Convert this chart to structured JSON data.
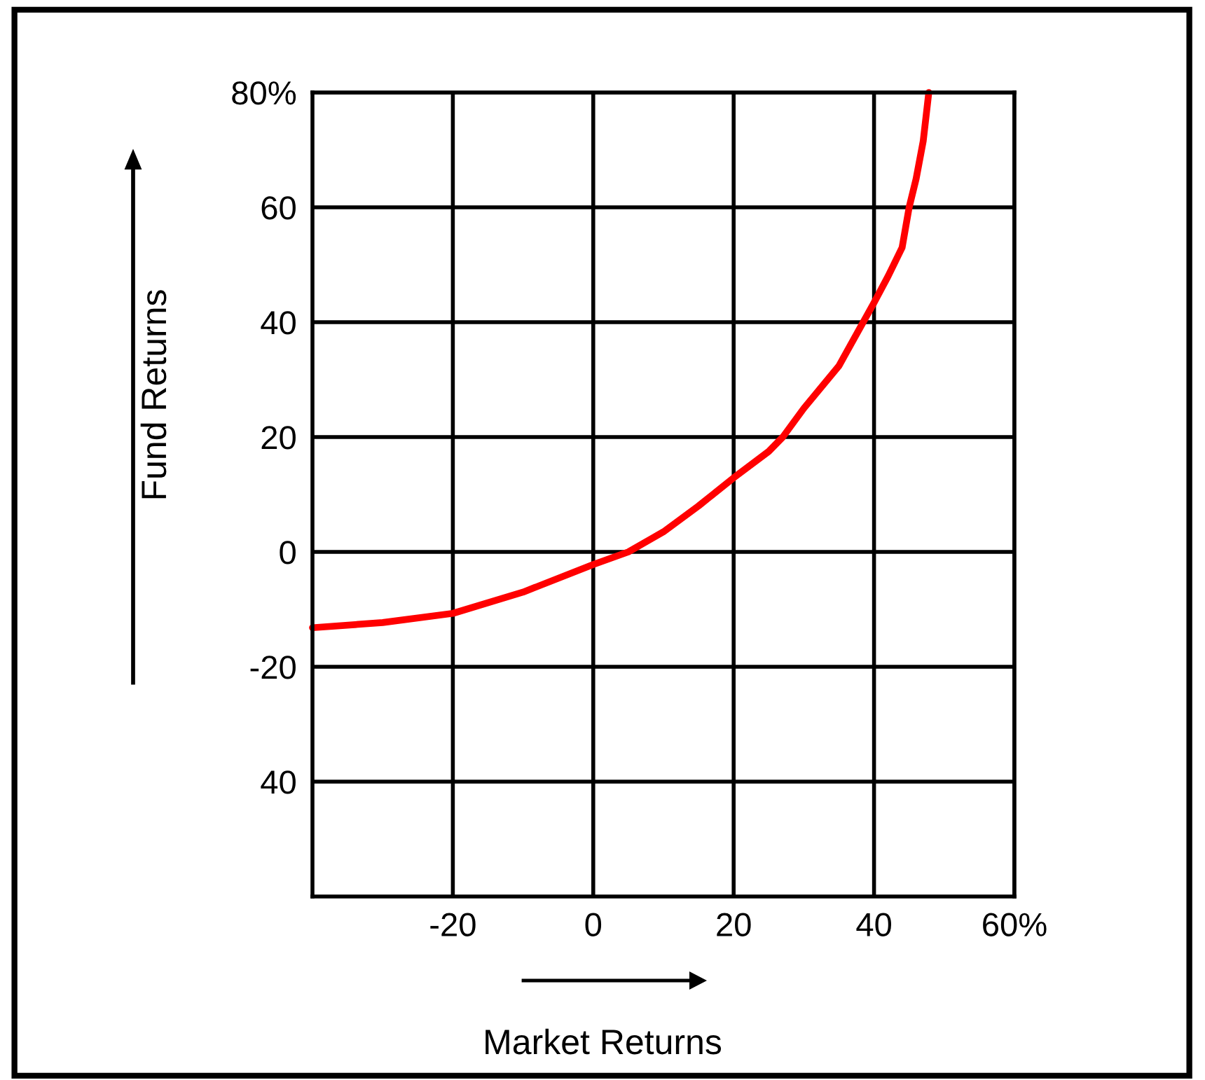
{
  "chart_data": {
    "type": "line",
    "xlabel": "Market Returns",
    "ylabel": "Fund Returns",
    "xlim": [
      -40,
      60
    ],
    "ylim": [
      -60,
      80
    ],
    "xticks": [
      -20,
      0,
      20,
      {
        "value": 40,
        "label": "40"
      },
      {
        "value": 60,
        "label": "60%"
      }
    ],
    "yticks": [
      {
        "value": 80,
        "label": "80%"
      },
      60,
      40,
      20,
      0,
      -20,
      {
        "value": -40,
        "label": "40"
      }
    ],
    "grid": true,
    "marker": "none",
    "line_style": "solid",
    "series": [
      {
        "color": "#ff0000",
        "x": [
          -40,
          -30,
          -20,
          -10,
          0,
          5,
          10,
          15,
          20,
          25,
          27,
          30,
          35,
          40,
          42,
          44,
          45,
          46,
          47,
          47.8
        ],
        "values": [
          -13.2,
          -12.3,
          -10.7,
          -7,
          -2.2,
          0,
          3.5,
          8,
          12.9,
          17.5,
          20,
          25,
          32.4,
          43.4,
          48,
          53,
          60,
          65,
          71.5,
          80
        ]
      }
    ]
  }
}
